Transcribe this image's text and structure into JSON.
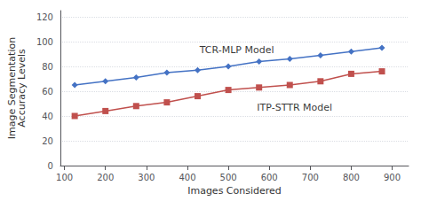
{
  "chart_data": {
    "type": "line",
    "x": [
      125,
      200,
      275,
      350,
      425,
      500,
      575,
      650,
      725,
      800,
      875
    ],
    "series": [
      {
        "color": "#4472C4",
        "marker": "diamond",
        "values": [
          65,
          68,
          71,
          75,
          77,
          80,
          84,
          86,
          89,
          92,
          95
        ]
      },
      {
        "color": "#C0504D",
        "marker": "square",
        "values": [
          40,
          44,
          48,
          51,
          56,
          61,
          63,
          65,
          68,
          74,
          76
        ]
      }
    ],
    "x_label": "Images Considered",
    "y_label": "Image Segmentation\nAccuracy Levels",
    "xlim": [
      90,
      940
    ],
    "ylim": [
      0,
      125
    ],
    "xticks": [
      100,
      200,
      300,
      400,
      500,
      600,
      700,
      800,
      900
    ],
    "yticks": [
      0,
      20,
      40,
      60,
      80,
      100,
      120
    ],
    "grid": true,
    "annotations": [
      {
        "text": "TCR-MLP Model",
        "x": 430,
        "y": 88
      },
      {
        "text": "ITP-STTR Model",
        "x": 570,
        "y": 52
      }
    ]
  }
}
